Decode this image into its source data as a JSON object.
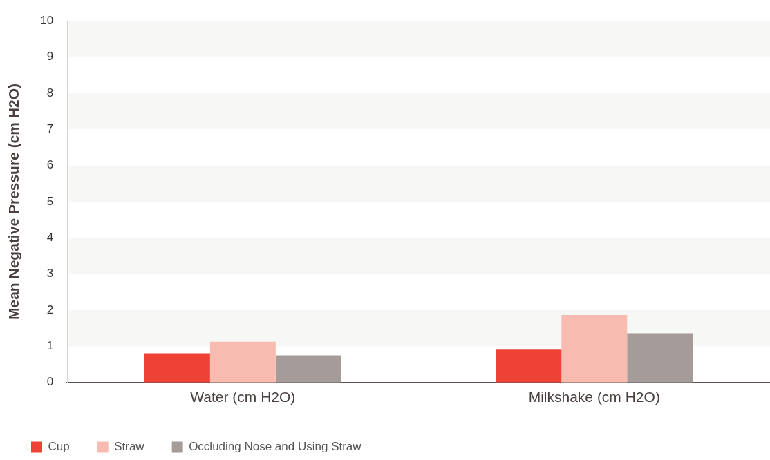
{
  "chart_data": {
    "type": "bar",
    "ylabel": "Mean Negative Pressure (cm H2O)",
    "categories": [
      "Water (cm H2O)",
      "Milkshake (cm H2O)"
    ],
    "series": [
      {
        "name": "Cup",
        "color": "#ee4237",
        "values": [
          0.81,
          0.91
        ]
      },
      {
        "name": "Straw",
        "color": "#f8bbaf",
        "values": [
          1.13,
          1.87
        ]
      },
      {
        "name": "Occluding Nose and Using Straw",
        "color": "#a59b99",
        "values": [
          0.75,
          1.36
        ]
      }
    ],
    "ylim": [
      0,
      10
    ],
    "yticks": [
      0,
      1,
      2,
      3,
      4,
      5,
      6,
      7,
      8,
      9,
      10
    ],
    "legend": "bottom left"
  }
}
